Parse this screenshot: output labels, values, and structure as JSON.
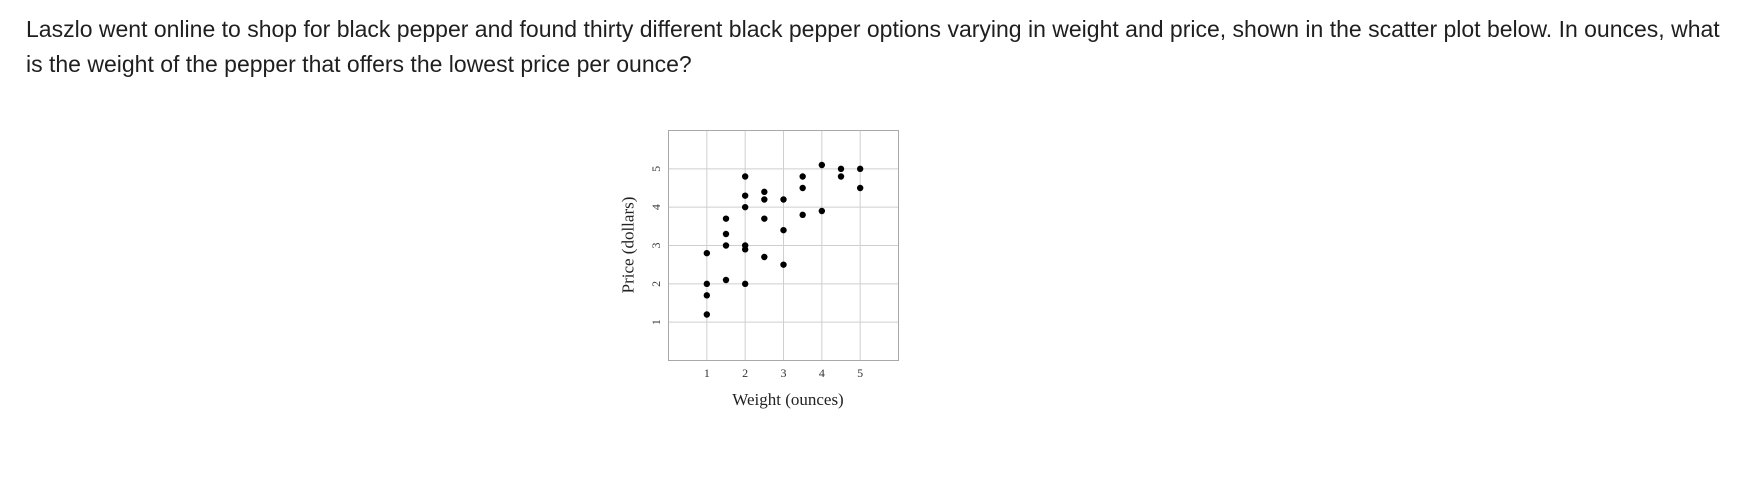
{
  "question": {
    "text": "Laszlo went online to shop for black pepper and found thirty different black pepper options varying in weight and price, shown in the scatter plot below. In ounces, what is the weight of the pepper that offers the lowest price per ounce?"
  },
  "chart_data": {
    "type": "scatter",
    "title": "",
    "xlabel": "Weight (ounces)",
    "ylabel": "Price (dollars)",
    "xlim": [
      0,
      6
    ],
    "ylim": [
      0,
      6
    ],
    "xticks": [
      1,
      2,
      3,
      4,
      5
    ],
    "yticks": [
      1,
      2,
      3,
      4,
      5
    ],
    "grid": true,
    "point_color": "#000000",
    "points": [
      {
        "x": 1,
        "y": 1.2
      },
      {
        "x": 1,
        "y": 1.7
      },
      {
        "x": 1,
        "y": 2.0
      },
      {
        "x": 1,
        "y": 2.8
      },
      {
        "x": 1.5,
        "y": 2.1
      },
      {
        "x": 1.5,
        "y": 3.0
      },
      {
        "x": 1.5,
        "y": 3.3
      },
      {
        "x": 1.5,
        "y": 3.7
      },
      {
        "x": 2,
        "y": 2.0
      },
      {
        "x": 2,
        "y": 2.9
      },
      {
        "x": 2,
        "y": 3.0
      },
      {
        "x": 2,
        "y": 4.0
      },
      {
        "x": 2,
        "y": 4.3
      },
      {
        "x": 2,
        "y": 4.8
      },
      {
        "x": 2.5,
        "y": 2.7
      },
      {
        "x": 2.5,
        "y": 3.7
      },
      {
        "x": 2.5,
        "y": 4.2
      },
      {
        "x": 2.5,
        "y": 4.4
      },
      {
        "x": 3,
        "y": 2.5
      },
      {
        "x": 3,
        "y": 3.4
      },
      {
        "x": 3,
        "y": 4.2
      },
      {
        "x": 3.5,
        "y": 3.8
      },
      {
        "x": 3.5,
        "y": 4.5
      },
      {
        "x": 3.5,
        "y": 4.8
      },
      {
        "x": 4,
        "y": 3.9
      },
      {
        "x": 4,
        "y": 5.1
      },
      {
        "x": 4.5,
        "y": 4.8
      },
      {
        "x": 4.5,
        "y": 5.0
      },
      {
        "x": 5,
        "y": 4.5
      },
      {
        "x": 5,
        "y": 5.0
      }
    ]
  }
}
